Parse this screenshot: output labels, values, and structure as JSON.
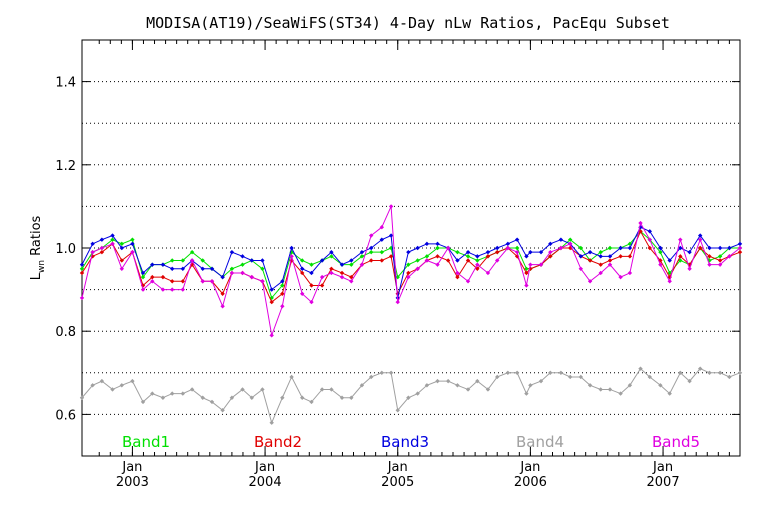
{
  "chart_data": {
    "type": "line",
    "title": "MODISA(AT19)/SeaWiFS(ST34) 4-Day nLw Ratios, PacEqu Subset",
    "ylabel_main": "L",
    "ylabel_sub": "wn",
    "ylabel_rest": " Ratios",
    "xlim": [
      2002.62,
      2007.58
    ],
    "ylim": [
      0.5,
      1.5
    ],
    "y_ticks": [
      0.6,
      0.8,
      1.0,
      1.2,
      1.4
    ],
    "y_tick_labels": [
      "0.6",
      "0.8",
      "1.0",
      "1.2",
      "1.4"
    ],
    "gridlines_y": [
      0.6,
      0.7,
      0.8,
      0.9,
      1.0,
      1.1,
      1.2,
      1.3,
      1.4
    ],
    "x_ticks": [
      {
        "pos": 2003.0,
        "month": "Jan",
        "year": "2003"
      },
      {
        "pos": 2004.0,
        "month": "Jan",
        "year": "2004"
      },
      {
        "pos": 2005.0,
        "month": "Jan",
        "year": "2005"
      },
      {
        "pos": 2006.0,
        "month": "Jan",
        "year": "2006"
      },
      {
        "pos": 2007.0,
        "month": "Jan",
        "year": "2007"
      }
    ],
    "x": [
      2002.62,
      2002.7,
      2002.77,
      2002.85,
      2002.92,
      2003.0,
      2003.08,
      2003.15,
      2003.23,
      2003.3,
      2003.38,
      2003.45,
      2003.53,
      2003.6,
      2003.68,
      2003.75,
      2003.83,
      2003.9,
      2003.98,
      2004.05,
      2004.13,
      2004.2,
      2004.28,
      2004.35,
      2004.43,
      2004.5,
      2004.58,
      2004.65,
      2004.73,
      2004.8,
      2004.88,
      2004.95,
      2005.0,
      2005.08,
      2005.15,
      2005.22,
      2005.3,
      2005.38,
      2005.45,
      2005.53,
      2005.6,
      2005.68,
      2005.75,
      2005.83,
      2005.9,
      2005.97,
      2006.0,
      2006.08,
      2006.15,
      2006.23,
      2006.3,
      2006.38,
      2006.45,
      2006.53,
      2006.6,
      2006.68,
      2006.75,
      2006.83,
      2006.9,
      2006.98,
      2007.05,
      2007.13,
      2007.2,
      2007.28,
      2007.35,
      2007.43,
      2007.5,
      2007.58
    ],
    "series": [
      {
        "name": "Band1",
        "color": "#00e000",
        "values": [
          0.95,
          0.99,
          1.0,
          1.02,
          1.01,
          1.02,
          0.93,
          0.96,
          0.96,
          0.97,
          0.97,
          0.99,
          0.97,
          0.95,
          0.93,
          0.95,
          0.96,
          0.97,
          0.95,
          0.88,
          0.91,
          0.99,
          0.97,
          0.96,
          0.97,
          0.98,
          0.96,
          0.96,
          0.98,
          0.99,
          0.99,
          1.0,
          0.93,
          0.96,
          0.97,
          0.98,
          1.0,
          1.0,
          0.99,
          0.98,
          0.97,
          0.98,
          0.99,
          1.0,
          1.0,
          0.95,
          0.95,
          0.96,
          0.98,
          1.0,
          1.02,
          1.0,
          0.97,
          0.99,
          1.0,
          1.0,
          1.01,
          1.04,
          1.02,
          0.99,
          0.94,
          0.97,
          0.96,
          1.0,
          0.97,
          0.98,
          1.0,
          1.0
        ]
      },
      {
        "name": "Band2",
        "color": "#e00000",
        "values": [
          0.94,
          0.98,
          0.99,
          1.01,
          0.97,
          0.99,
          0.91,
          0.93,
          0.93,
          0.92,
          0.92,
          0.96,
          0.92,
          0.92,
          0.89,
          0.94,
          0.94,
          0.93,
          0.92,
          0.87,
          0.89,
          0.97,
          0.94,
          0.91,
          0.91,
          0.95,
          0.94,
          0.93,
          0.96,
          0.97,
          0.97,
          0.98,
          0.89,
          0.94,
          0.95,
          0.97,
          0.98,
          0.97,
          0.93,
          0.97,
          0.95,
          0.98,
          0.99,
          1.0,
          0.98,
          0.94,
          0.95,
          0.96,
          0.98,
          1.0,
          1.0,
          0.98,
          0.97,
          0.96,
          0.97,
          0.98,
          0.98,
          1.04,
          1.0,
          0.97,
          0.93,
          0.98,
          0.96,
          1.0,
          0.98,
          0.97,
          0.98,
          0.99
        ]
      },
      {
        "name": "Band3",
        "color": "#0000e0",
        "values": [
          0.96,
          1.01,
          1.02,
          1.03,
          1.0,
          1.01,
          0.94,
          0.96,
          0.96,
          0.95,
          0.95,
          0.97,
          0.95,
          0.95,
          0.93,
          0.99,
          0.98,
          0.97,
          0.97,
          0.9,
          0.92,
          1.0,
          0.95,
          0.94,
          0.97,
          0.99,
          0.96,
          0.97,
          0.99,
          1.0,
          1.02,
          1.03,
          0.88,
          0.99,
          1.0,
          1.01,
          1.01,
          1.0,
          0.97,
          0.99,
          0.98,
          0.99,
          1.0,
          1.01,
          1.02,
          0.98,
          0.99,
          0.99,
          1.01,
          1.02,
          1.01,
          0.98,
          0.99,
          0.98,
          0.98,
          1.0,
          1.0,
          1.05,
          1.04,
          1.0,
          0.97,
          1.0,
          0.99,
          1.03,
          1.0,
          1.0,
          1.0,
          1.01
        ]
      },
      {
        "name": "Band4",
        "color": "#a0a0a0",
        "values": [
          0.64,
          0.67,
          0.68,
          0.66,
          0.67,
          0.68,
          0.63,
          0.65,
          0.64,
          0.65,
          0.65,
          0.66,
          0.64,
          0.63,
          0.61,
          0.64,
          0.66,
          0.64,
          0.66,
          0.58,
          0.64,
          0.69,
          0.64,
          0.63,
          0.66,
          0.66,
          0.64,
          0.64,
          0.67,
          0.69,
          0.7,
          0.7,
          0.61,
          0.64,
          0.65,
          0.67,
          0.68,
          0.68,
          0.67,
          0.66,
          0.68,
          0.66,
          0.69,
          0.7,
          0.7,
          0.65,
          0.67,
          0.68,
          0.7,
          0.7,
          0.69,
          0.69,
          0.67,
          0.66,
          0.66,
          0.65,
          0.67,
          0.71,
          0.69,
          0.67,
          0.65,
          0.7,
          0.68,
          0.71,
          0.7,
          0.7,
          0.69,
          0.7
        ]
      },
      {
        "name": "Band5",
        "color": "#e000e0",
        "values": [
          0.88,
          0.99,
          1.0,
          1.01,
          0.95,
          0.99,
          0.9,
          0.92,
          0.9,
          0.9,
          0.9,
          0.97,
          0.92,
          0.92,
          0.86,
          0.94,
          0.94,
          0.93,
          0.92,
          0.79,
          0.86,
          0.98,
          0.89,
          0.87,
          0.93,
          0.94,
          0.93,
          0.92,
          0.96,
          1.03,
          1.05,
          1.1,
          0.87,
          0.93,
          0.95,
          0.97,
          0.96,
          1.0,
          0.94,
          0.92,
          0.96,
          0.94,
          0.97,
          1.0,
          0.99,
          0.91,
          0.96,
          0.96,
          0.99,
          1.0,
          1.01,
          0.95,
          0.92,
          0.94,
          0.96,
          0.93,
          0.94,
          1.06,
          1.02,
          0.96,
          0.92,
          1.02,
          0.95,
          1.02,
          0.96,
          0.96,
          0.98,
          1.0
        ]
      }
    ]
  }
}
